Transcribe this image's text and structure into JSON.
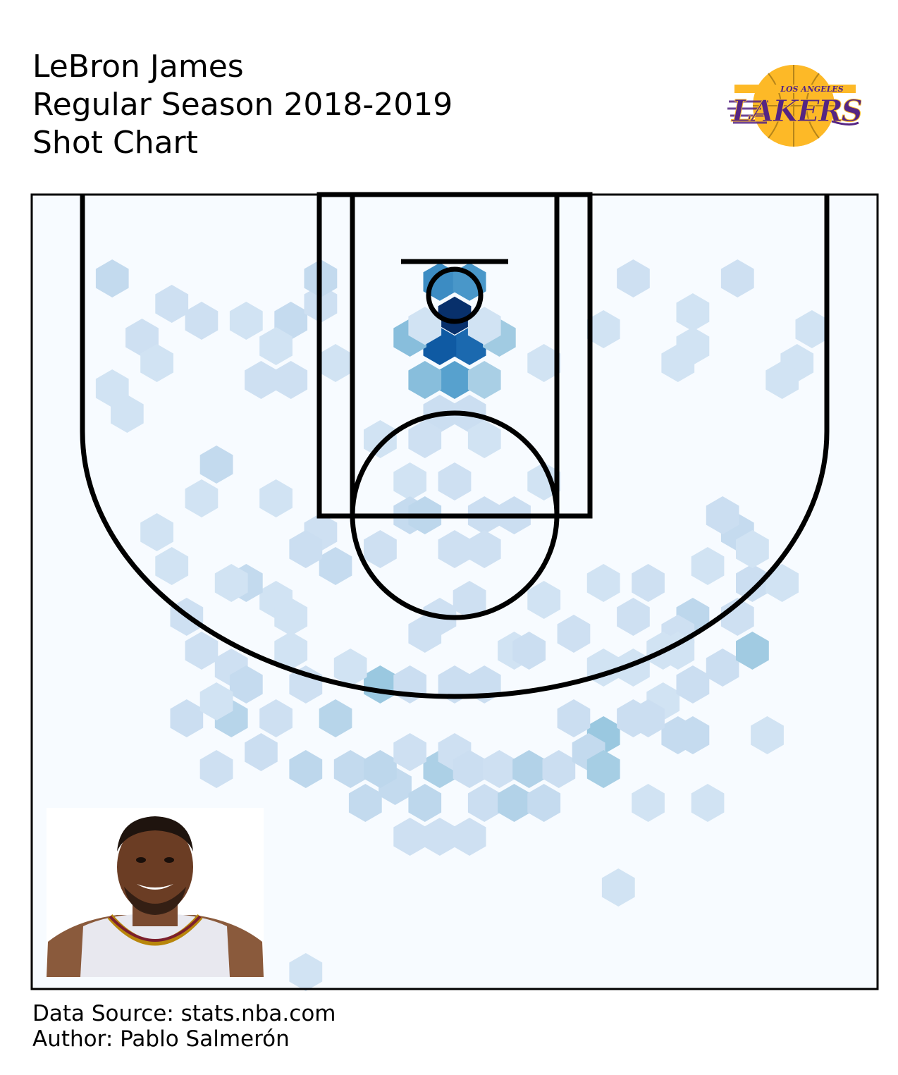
{
  "title": {
    "line1": "LeBron James",
    "line2": "Regular Season 2018-2019",
    "line3": "Shot Chart"
  },
  "logo": {
    "text_top": "LOS ANGELES",
    "text_main": "LAKERS",
    "colors": {
      "gold": "#FDB927",
      "purple": "#552583"
    }
  },
  "credits": {
    "source": "Data Source: stats.nba.com",
    "author": "Author: Pablo Salmerón"
  },
  "chart_data": {
    "type": "heatmap",
    "subtype": "hexbin-shot-chart",
    "colormap": "Blues",
    "units": "court feet relative to basket; x from -25 to 25 (sideline to sideline), y from -5 (baseline) upward",
    "xlim": [
      -25,
      25
    ],
    "ylim": [
      -4,
      42
    ],
    "grid": false,
    "legend": "none",
    "bins": [
      {
        "x": 0,
        "y": 1.2,
        "v": 1.0
      },
      {
        "x": 1,
        "y": 3.0,
        "v": 0.75
      },
      {
        "x": -1,
        "y": 3.0,
        "v": 0.82
      },
      {
        "x": -1,
        "y": -0.8,
        "v": 0.6
      },
      {
        "x": 1,
        "y": -0.8,
        "v": 0.55
      },
      {
        "x": -3,
        "y": 2.5,
        "v": 0.35
      },
      {
        "x": 3,
        "y": 2.5,
        "v": 0.28
      },
      {
        "x": 0,
        "y": 5,
        "v": 0.5
      },
      {
        "x": -2,
        "y": 5,
        "v": 0.35
      },
      {
        "x": 2,
        "y": 5,
        "v": 0.25
      },
      {
        "x": -2,
        "y": 1.8,
        "v": 0.08
      },
      {
        "x": 2,
        "y": 1.8,
        "v": 0.08
      },
      {
        "x": -1,
        "y": 7,
        "v": 0.12
      },
      {
        "x": 1,
        "y": 7,
        "v": 0.12
      },
      {
        "x": -2,
        "y": 8.5,
        "v": 0.1
      },
      {
        "x": 2,
        "y": 8.5,
        "v": 0.08
      },
      {
        "x": -5,
        "y": 8.5,
        "v": 0.08
      },
      {
        "x": -3,
        "y": 11,
        "v": 0.08
      },
      {
        "x": 0,
        "y": 11,
        "v": 0.1
      },
      {
        "x": 2,
        "y": 13,
        "v": 0.12
      },
      {
        "x": -3,
        "y": 13,
        "v": 0.15
      },
      {
        "x": -2,
        "y": 13,
        "v": 0.18
      },
      {
        "x": 4,
        "y": 13,
        "v": 0.12
      },
      {
        "x": 0,
        "y": 15,
        "v": 0.1
      },
      {
        "x": -5,
        "y": 15,
        "v": 0.1
      },
      {
        "x": 6,
        "y": 11,
        "v": 0.08
      },
      {
        "x": 2,
        "y": 15,
        "v": 0.1
      },
      {
        "x": -23,
        "y": -1,
        "v": 0.16
      },
      {
        "x": -19,
        "y": 0.5,
        "v": 0.1
      },
      {
        "x": -17,
        "y": 1.5,
        "v": 0.1
      },
      {
        "x": -21,
        "y": 2.5,
        "v": 0.1
      },
      {
        "x": -20,
        "y": 4,
        "v": 0.08
      },
      {
        "x": -23,
        "y": 5.5,
        "v": 0.08
      },
      {
        "x": -22,
        "y": 7,
        "v": 0.08
      },
      {
        "x": -14,
        "y": 1.5,
        "v": 0.08
      },
      {
        "x": -11,
        "y": 1.5,
        "v": 0.15
      },
      {
        "x": -9,
        "y": 0.5,
        "v": 0.1
      },
      {
        "x": -9,
        "y": -1,
        "v": 0.16
      },
      {
        "x": -12,
        "y": 3,
        "v": 0.08
      },
      {
        "x": -13,
        "y": 5,
        "v": 0.1
      },
      {
        "x": -11,
        "y": 5,
        "v": 0.1
      },
      {
        "x": -8,
        "y": 4,
        "v": 0.08
      },
      {
        "x": 12,
        "y": -1,
        "v": 0.1
      },
      {
        "x": 19,
        "y": -1,
        "v": 0.1
      },
      {
        "x": 16,
        "y": 1,
        "v": 0.08
      },
      {
        "x": 10,
        "y": 2,
        "v": 0.08
      },
      {
        "x": 16,
        "y": 3,
        "v": 0.08
      },
      {
        "x": 15,
        "y": 4,
        "v": 0.08
      },
      {
        "x": 6,
        "y": 4,
        "v": 0.08
      },
      {
        "x": 24,
        "y": 2,
        "v": 0.08
      },
      {
        "x": 23,
        "y": 4,
        "v": 0.08
      },
      {
        "x": 22,
        "y": 5,
        "v": 0.08
      },
      {
        "x": -17,
        "y": 12,
        "v": 0.08
      },
      {
        "x": -12,
        "y": 12,
        "v": 0.08
      },
      {
        "x": -16,
        "y": 10,
        "v": 0.16
      },
      {
        "x": -20,
        "y": 14,
        "v": 0.08
      },
      {
        "x": -19,
        "y": 16,
        "v": 0.08
      },
      {
        "x": -9,
        "y": 14,
        "v": 0.1
      },
      {
        "x": -8,
        "y": 16,
        "v": 0.15
      },
      {
        "x": -12,
        "y": 18,
        "v": 0.08
      },
      {
        "x": -14,
        "y": 17,
        "v": 0.16
      },
      {
        "x": -11,
        "y": 19,
        "v": 0.08
      },
      {
        "x": -15,
        "y": 17,
        "v": 0.08
      },
      {
        "x": -18,
        "y": 19,
        "v": 0.1
      },
      {
        "x": -17,
        "y": 21,
        "v": 0.1
      },
      {
        "x": -11,
        "y": 21,
        "v": 0.08
      },
      {
        "x": -10,
        "y": 15,
        "v": 0.12
      },
      {
        "x": -15,
        "y": 22,
        "v": 0.1
      },
      {
        "x": -14,
        "y": 23,
        "v": 0.15
      },
      {
        "x": -15,
        "y": 25,
        "v": 0.2
      },
      {
        "x": -18,
        "y": 25,
        "v": 0.12
      },
      {
        "x": -16,
        "y": 24,
        "v": 0.08
      },
      {
        "x": -10,
        "y": 23,
        "v": 0.1
      },
      {
        "x": -5,
        "y": 23,
        "v": 0.3
      },
      {
        "x": -3,
        "y": 23,
        "v": 0.12
      },
      {
        "x": -2,
        "y": 20,
        "v": 0.1
      },
      {
        "x": -7,
        "y": 22,
        "v": 0.08
      },
      {
        "x": 0,
        "y": 23,
        "v": 0.12
      },
      {
        "x": 2,
        "y": 23,
        "v": 0.12
      },
      {
        "x": -1,
        "y": 19,
        "v": 0.1
      },
      {
        "x": 1,
        "y": 18,
        "v": 0.1
      },
      {
        "x": 4,
        "y": 21,
        "v": 0.08
      },
      {
        "x": 5,
        "y": 21,
        "v": 0.12
      },
      {
        "x": 8,
        "y": 20,
        "v": 0.1
      },
      {
        "x": 6,
        "y": 18,
        "v": 0.08
      },
      {
        "x": 10,
        "y": 22,
        "v": 0.08
      },
      {
        "x": 10,
        "y": 17,
        "v": 0.08
      },
      {
        "x": 12,
        "y": 19,
        "v": 0.1
      },
      {
        "x": 13,
        "y": 17,
        "v": 0.1
      },
      {
        "x": 12,
        "y": 22,
        "v": 0.08
      },
      {
        "x": 14,
        "y": 24,
        "v": 0.08
      },
      {
        "x": 15,
        "y": 26,
        "v": 0.15
      },
      {
        "x": 10,
        "y": 26,
        "v": 0.3
      },
      {
        "x": 16,
        "y": 23,
        "v": 0.12
      },
      {
        "x": 18,
        "y": 22,
        "v": 0.12
      },
      {
        "x": 19,
        "y": 19,
        "v": 0.1
      },
      {
        "x": 20,
        "y": 17,
        "v": 0.12
      },
      {
        "x": 19,
        "y": 14,
        "v": 0.15
      },
      {
        "x": 20,
        "y": 15,
        "v": 0.08
      },
      {
        "x": 18,
        "y": 13,
        "v": 0.12
      },
      {
        "x": 17,
        "y": 16,
        "v": 0.08
      },
      {
        "x": 16,
        "y": 19,
        "v": 0.18
      },
      {
        "x": 15,
        "y": 20,
        "v": 0.1
      },
      {
        "x": 14,
        "y": 21,
        "v": 0.08
      },
      {
        "x": 15,
        "y": 21,
        "v": 0.08
      },
      {
        "x": 22,
        "y": 17,
        "v": 0.08
      },
      {
        "x": 20,
        "y": 21,
        "v": 0.28
      },
      {
        "x": -12,
        "y": 25,
        "v": 0.1
      },
      {
        "x": -8,
        "y": 25,
        "v": 0.2
      },
      {
        "x": -7,
        "y": 28,
        "v": 0.16
      },
      {
        "x": -10,
        "y": 28,
        "v": 0.18
      },
      {
        "x": -16,
        "y": 28,
        "v": 0.1
      },
      {
        "x": -13,
        "y": 27,
        "v": 0.12
      },
      {
        "x": -4,
        "y": 29,
        "v": 0.16
      },
      {
        "x": -6,
        "y": 30,
        "v": 0.16
      },
      {
        "x": -2,
        "y": 30,
        "v": 0.18
      },
      {
        "x": -1,
        "y": 28,
        "v": 0.24
      },
      {
        "x": -5,
        "y": 28,
        "v": 0.18
      },
      {
        "x": -3,
        "y": 27,
        "v": 0.1
      },
      {
        "x": 0,
        "y": 27,
        "v": 0.1
      },
      {
        "x": 1,
        "y": 28,
        "v": 0.12
      },
      {
        "x": 2,
        "y": 30,
        "v": 0.12
      },
      {
        "x": 3,
        "y": 28,
        "v": 0.1
      },
      {
        "x": 4,
        "y": 30,
        "v": 0.22
      },
      {
        "x": 5,
        "y": 28,
        "v": 0.22
      },
      {
        "x": 6,
        "y": 30,
        "v": 0.15
      },
      {
        "x": 7,
        "y": 28,
        "v": 0.12
      },
      {
        "x": 9,
        "y": 27,
        "v": 0.16
      },
      {
        "x": 10,
        "y": 28,
        "v": 0.26
      },
      {
        "x": 8,
        "y": 25,
        "v": 0.12
      },
      {
        "x": 12,
        "y": 25,
        "v": 0.12
      },
      {
        "x": 13,
        "y": 25,
        "v": 0.12
      },
      {
        "x": 16,
        "y": 26,
        "v": 0.15
      },
      {
        "x": -3,
        "y": 32,
        "v": 0.1
      },
      {
        "x": -1,
        "y": 32,
        "v": 0.1
      },
      {
        "x": 1,
        "y": 32,
        "v": 0.1
      },
      {
        "x": 13,
        "y": 30,
        "v": 0.08
      },
      {
        "x": 17,
        "y": 30,
        "v": 0.08
      },
      {
        "x": 21,
        "y": 26,
        "v": 0.08
      },
      {
        "x": 11,
        "y": 35,
        "v": 0.08
      },
      {
        "x": -10,
        "y": 40,
        "v": 0.08
      }
    ]
  }
}
